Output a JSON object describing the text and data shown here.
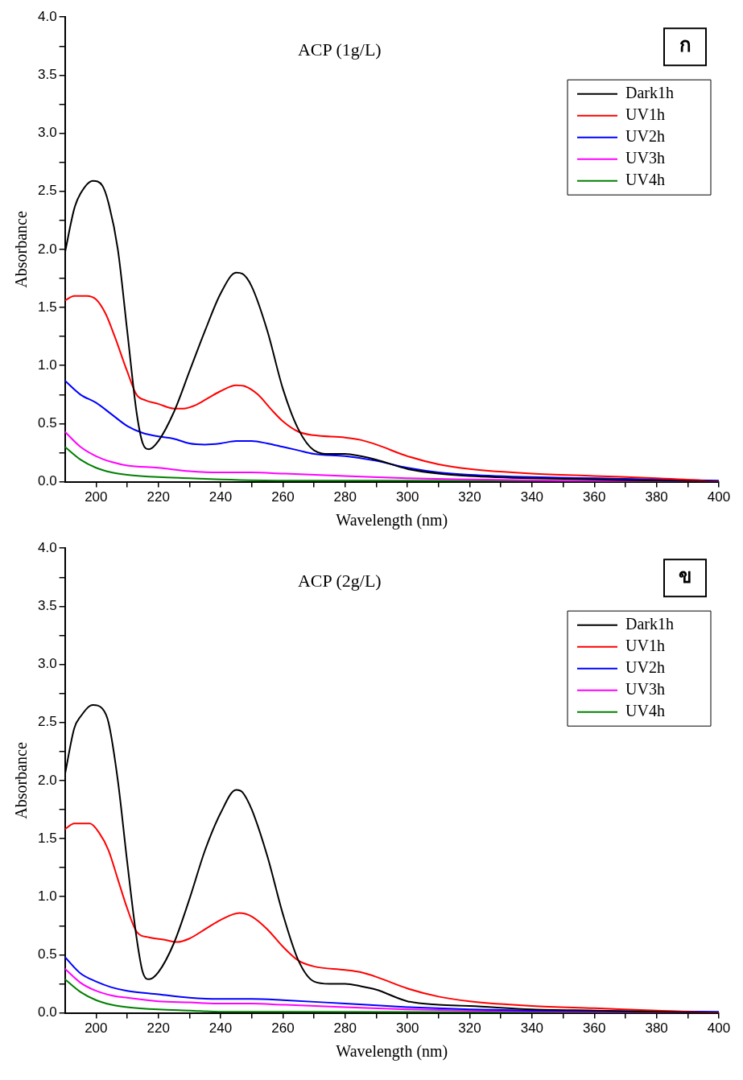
{
  "chart_data": [
    {
      "type": "line",
      "title": "ACP (1g/L)",
      "xlabel": "Wavelength (nm)",
      "ylabel": "Absorbance",
      "annotations": [
        "ก"
      ],
      "legend": "top right",
      "grid": false,
      "marker": "none",
      "line_style": "solid",
      "xlim": [
        190,
        400
      ],
      "ylim": [
        0,
        4
      ],
      "xticks": [
        200,
        {
          "value": 210,
          "label": null
        },
        220,
        {
          "value": 230,
          "label": null
        },
        240,
        {
          "value": 250,
          "label": null
        },
        260,
        {
          "value": 270,
          "label": null
        },
        280,
        {
          "value": 290,
          "label": null
        },
        300,
        {
          "value": 310,
          "label": null
        },
        320,
        {
          "value": 330,
          "label": null
        },
        340,
        {
          "value": 350,
          "label": null
        },
        360,
        {
          "value": 370,
          "label": null
        },
        380,
        {
          "value": 390,
          "label": null
        },
        400
      ],
      "yticks": [
        {
          "value": 0,
          "label": "0.0"
        },
        {
          "value": 0.25,
          "label": null
        },
        {
          "value": 0.5,
          "label": "0.5"
        },
        {
          "value": 0.75,
          "label": null
        },
        {
          "value": 1,
          "label": "1.0"
        },
        {
          "value": 1.25,
          "label": null
        },
        {
          "value": 1.5,
          "label": "1.5"
        },
        {
          "value": 1.75,
          "label": null
        },
        {
          "value": 2,
          "label": "2.0"
        },
        {
          "value": 2.25,
          "label": null
        },
        {
          "value": 2.5,
          "label": "2.5"
        },
        {
          "value": 2.75,
          "label": null
        },
        {
          "value": 3,
          "label": "3.0"
        },
        {
          "value": 3.25,
          "label": null
        },
        {
          "value": 3.5,
          "label": "3.5"
        },
        {
          "value": 3.75,
          "label": null
        },
        {
          "value": 4,
          "label": "4.0"
        }
      ],
      "series": [
        {
          "name": "Dark1h",
          "color": "#000000",
          "x": [
            190,
            193,
            195,
            199,
            202,
            204,
            207,
            210,
            213,
            215,
            217,
            220,
            225,
            230,
            235,
            240,
            245,
            247,
            250,
            255,
            260,
            265,
            270,
            275,
            280,
            285,
            290,
            300,
            310,
            320,
            340,
            360,
            380,
            400
          ],
          "values": [
            1.97,
            2.35,
            2.48,
            2.59,
            2.55,
            2.4,
            2.0,
            1.3,
            0.6,
            0.33,
            0.28,
            0.35,
            0.6,
            0.95,
            1.3,
            1.62,
            1.8,
            1.79,
            1.68,
            1.3,
            0.8,
            0.45,
            0.27,
            0.24,
            0.24,
            0.22,
            0.19,
            0.11,
            0.07,
            0.05,
            0.03,
            0.02,
            0.01,
            0.0
          ]
        },
        {
          "name": "UV1h",
          "color": "#ff0000",
          "x": [
            190,
            193,
            197,
            200,
            203,
            206,
            210,
            213,
            216,
            220,
            225,
            228,
            232,
            236,
            240,
            245,
            248,
            252,
            256,
            260,
            265,
            270,
            280,
            285,
            290,
            300,
            310,
            320,
            340,
            360,
            380,
            395,
            400
          ],
          "values": [
            1.56,
            1.6,
            1.6,
            1.57,
            1.45,
            1.25,
            0.95,
            0.75,
            0.7,
            0.67,
            0.63,
            0.63,
            0.66,
            0.72,
            0.78,
            0.83,
            0.82,
            0.75,
            0.63,
            0.52,
            0.43,
            0.4,
            0.38,
            0.36,
            0.32,
            0.22,
            0.15,
            0.11,
            0.07,
            0.05,
            0.03,
            0.01,
            0.0
          ]
        },
        {
          "name": "UV2h",
          "color": "#0000ff",
          "x": [
            190,
            195,
            200,
            205,
            210,
            215,
            220,
            225,
            230,
            235,
            240,
            245,
            250,
            255,
            260,
            265,
            270,
            280,
            290,
            300,
            310,
            320,
            340,
            360,
            380,
            400
          ],
          "values": [
            0.87,
            0.75,
            0.68,
            0.58,
            0.48,
            0.42,
            0.39,
            0.37,
            0.33,
            0.32,
            0.33,
            0.35,
            0.35,
            0.33,
            0.3,
            0.27,
            0.24,
            0.22,
            0.18,
            0.12,
            0.08,
            0.06,
            0.04,
            0.03,
            0.02,
            0.01
          ]
        },
        {
          "name": "UV3h",
          "color": "#ff00ff",
          "x": [
            190,
            195,
            200,
            205,
            210,
            220,
            230,
            240,
            250,
            260,
            280,
            300,
            320,
            350,
            400
          ],
          "values": [
            0.43,
            0.3,
            0.22,
            0.17,
            0.14,
            0.12,
            0.09,
            0.08,
            0.08,
            0.07,
            0.05,
            0.03,
            0.02,
            0.01,
            0.0
          ]
        },
        {
          "name": "UV4h",
          "color": "#008000",
          "x": [
            190,
            195,
            200,
            205,
            210,
            220,
            230,
            240,
            260,
            300,
            400
          ],
          "values": [
            0.3,
            0.19,
            0.12,
            0.08,
            0.06,
            0.04,
            0.03,
            0.02,
            0.01,
            0.01,
            0.0
          ]
        }
      ]
    },
    {
      "type": "line",
      "title": "ACP (2g/L)",
      "xlabel": "Wavelength (nm)",
      "ylabel": "Absorbance",
      "annotations": [
        "ข"
      ],
      "legend": "top right",
      "grid": false,
      "marker": "none",
      "line_style": "solid",
      "xlim": [
        190,
        400
      ],
      "ylim": [
        0,
        4
      ],
      "xticks": [
        200,
        {
          "value": 210,
          "label": null
        },
        220,
        {
          "value": 230,
          "label": null
        },
        240,
        {
          "value": 250,
          "label": null
        },
        260,
        {
          "value": 270,
          "label": null
        },
        280,
        {
          "value": 290,
          "label": null
        },
        300,
        {
          "value": 310,
          "label": null
        },
        320,
        {
          "value": 330,
          "label": null
        },
        340,
        {
          "value": 350,
          "label": null
        },
        360,
        {
          "value": 370,
          "label": null
        },
        380,
        {
          "value": 390,
          "label": null
        },
        400
      ],
      "yticks": [
        {
          "value": 0,
          "label": "0.0"
        },
        {
          "value": 0.25,
          "label": null
        },
        {
          "value": 0.5,
          "label": "0.5"
        },
        {
          "value": 0.75,
          "label": null
        },
        {
          "value": 1,
          "label": "1.0"
        },
        {
          "value": 1.25,
          "label": null
        },
        {
          "value": 1.5,
          "label": "1.5"
        },
        {
          "value": 1.75,
          "label": null
        },
        {
          "value": 2,
          "label": "2.0"
        },
        {
          "value": 2.25,
          "label": null
        },
        {
          "value": 2.5,
          "label": "2.5"
        },
        {
          "value": 2.75,
          "label": null
        },
        {
          "value": 3,
          "label": "3.0"
        },
        {
          "value": 3.25,
          "label": null
        },
        {
          "value": 3.5,
          "label": "3.5"
        },
        {
          "value": 3.75,
          "label": null
        },
        {
          "value": 4,
          "label": "4.0"
        }
      ],
      "series": [
        {
          "name": "Dark1h",
          "color": "#000000",
          "x": [
            190,
            193,
            195,
            199,
            202,
            204,
            207,
            210,
            213,
            215,
            217,
            220,
            225,
            230,
            235,
            240,
            245,
            247,
            250,
            255,
            260,
            265,
            270,
            275,
            280,
            285,
            290,
            300,
            310,
            320,
            340,
            360,
            380,
            400
          ],
          "values": [
            2.05,
            2.45,
            2.55,
            2.65,
            2.62,
            2.5,
            2.0,
            1.3,
            0.65,
            0.35,
            0.29,
            0.35,
            0.6,
            0.98,
            1.4,
            1.72,
            1.92,
            1.9,
            1.75,
            1.35,
            0.85,
            0.45,
            0.27,
            0.25,
            0.25,
            0.23,
            0.2,
            0.1,
            0.07,
            0.06,
            0.03,
            0.02,
            0.01,
            0.0
          ]
        },
        {
          "name": "UV1h",
          "color": "#ff0000",
          "x": [
            190,
            193,
            198,
            201,
            204,
            207,
            210,
            213,
            217,
            222,
            226,
            230,
            235,
            240,
            246,
            250,
            255,
            260,
            265,
            270,
            280,
            285,
            290,
            300,
            310,
            320,
            340,
            360,
            380,
            400
          ],
          "values": [
            1.58,
            1.63,
            1.63,
            1.55,
            1.4,
            1.15,
            0.9,
            0.7,
            0.65,
            0.63,
            0.61,
            0.64,
            0.72,
            0.8,
            0.86,
            0.83,
            0.72,
            0.57,
            0.45,
            0.4,
            0.37,
            0.35,
            0.31,
            0.21,
            0.14,
            0.1,
            0.06,
            0.04,
            0.02,
            0.0
          ]
        },
        {
          "name": "UV2h",
          "color": "#0000ff",
          "x": [
            190,
            195,
            200,
            205,
            210,
            220,
            230,
            240,
            250,
            260,
            280,
            300,
            320,
            340,
            400
          ],
          "values": [
            0.48,
            0.34,
            0.27,
            0.22,
            0.19,
            0.16,
            0.13,
            0.12,
            0.12,
            0.11,
            0.08,
            0.05,
            0.03,
            0.02,
            0.01
          ]
        },
        {
          "name": "UV3h",
          "color": "#ff00ff",
          "x": [
            190,
            195,
            200,
            205,
            210,
            220,
            230,
            240,
            250,
            260,
            280,
            300,
            320,
            360,
            400
          ],
          "values": [
            0.38,
            0.26,
            0.19,
            0.15,
            0.13,
            0.1,
            0.09,
            0.08,
            0.08,
            0.07,
            0.05,
            0.03,
            0.02,
            0.01,
            0.0
          ]
        },
        {
          "name": "UV4h",
          "color": "#008000",
          "x": [
            190,
            195,
            200,
            205,
            210,
            220,
            230,
            240,
            260,
            400
          ],
          "values": [
            0.29,
            0.18,
            0.11,
            0.07,
            0.05,
            0.03,
            0.02,
            0.01,
            0.01,
            0.0
          ]
        }
      ]
    }
  ]
}
